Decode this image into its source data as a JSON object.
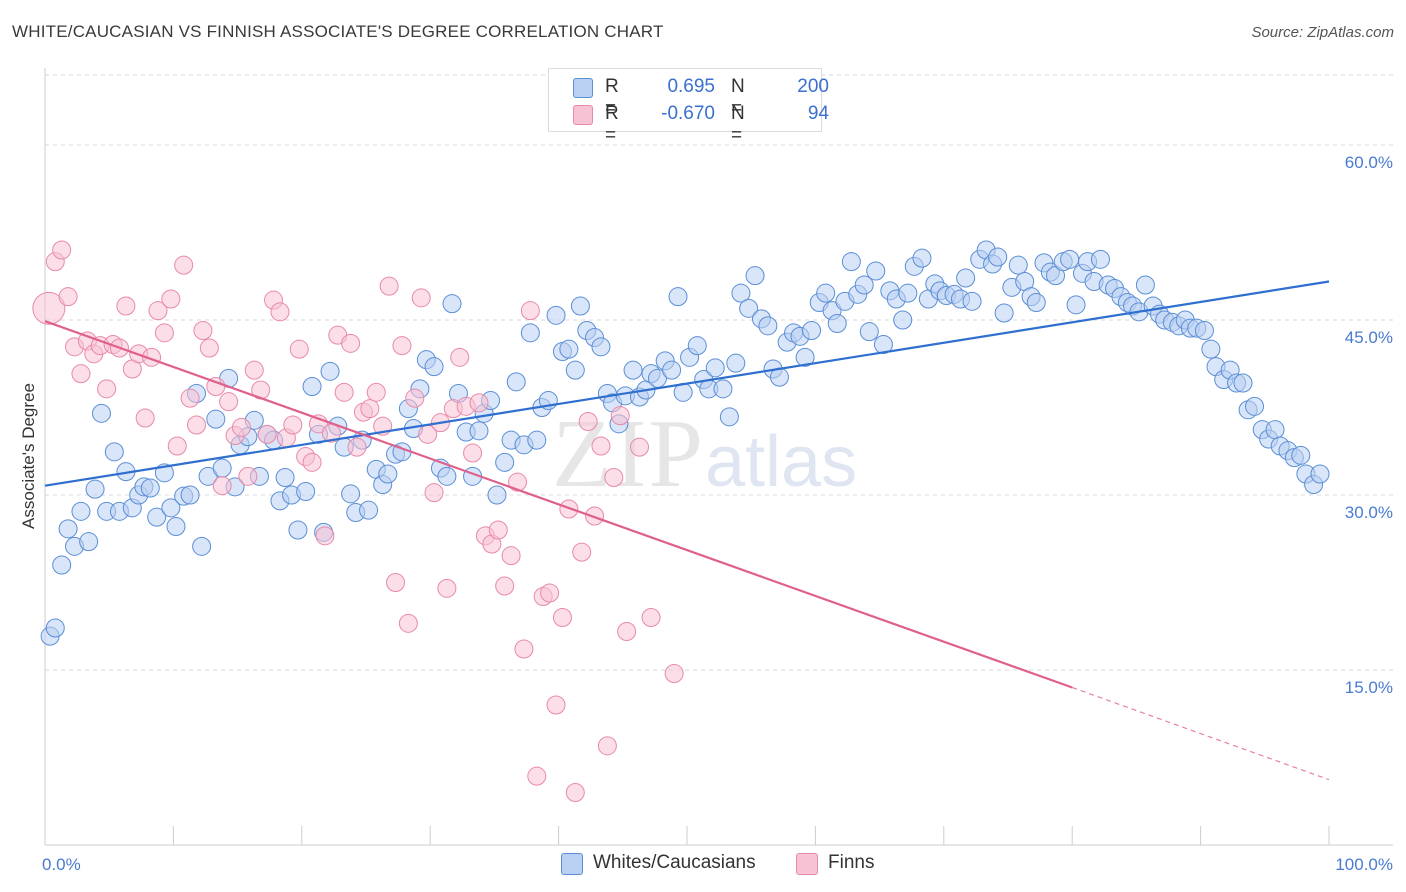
{
  "title": "WHITE/CAUCASIAN VS FINNISH ASSOCIATE'S DEGREE CORRELATION CHART",
  "source": "Source: ZipAtlas.com",
  "watermark": {
    "zip": "ZIP",
    "atlas": "atlas"
  },
  "colors": {
    "blue_fill": "#b9d0f2",
    "blue_stroke": "#5b8fd6",
    "blue_line": "#2e6fd0",
    "pink_fill": "#f7c3d4",
    "pink_stroke": "#e88aa9",
    "pink_line": "#e0608c",
    "grid": "#d9d9d9",
    "axis_text": "#4a7bd0"
  },
  "legend_top": [
    {
      "series": "Whites/Caucasians",
      "r_label": "R =",
      "r_value": "0.695",
      "n_label": "N =",
      "n_value": "200"
    },
    {
      "series": "Finns",
      "r_label": "R =",
      "r_value": "-0.670",
      "n_label": "N =",
      "n_value": "94"
    }
  ],
  "legend_bottom": [
    {
      "label": "Whites/Caucasians"
    },
    {
      "label": "Finns"
    }
  ],
  "chart_data": {
    "type": "scatter",
    "ylabel": "Associate's Degree",
    "xlabel": "",
    "xlim": [
      0,
      100
    ],
    "ylim": [
      0,
      66
    ],
    "x_tick_labels": {
      "left": "0.0%",
      "right": "100.0%"
    },
    "y_ticks": [
      {
        "value": 60,
        "label": "60.0%"
      },
      {
        "value": 45,
        "label": "45.0%"
      },
      {
        "value": 30,
        "label": "30.0%"
      },
      {
        "value": 15,
        "label": "15.0%"
      }
    ],
    "grid": "horizontal dashed",
    "legend": "top-center",
    "series": [
      {
        "name": "Whites/Caucasians",
        "trend": {
          "x0": 0,
          "y0": 30.8,
          "x1": 100,
          "y1": 48.3
        },
        "points": [
          [
            0.4,
            17.9
          ],
          [
            0.8,
            18.6
          ],
          [
            1.3,
            24.0
          ],
          [
            1.8,
            27.1
          ],
          [
            2.3,
            25.6
          ],
          [
            2.8,
            28.6
          ],
          [
            3.4,
            26.0
          ],
          [
            3.9,
            30.5
          ],
          [
            4.4,
            37.0
          ],
          [
            4.8,
            28.6
          ],
          [
            5.4,
            33.7
          ],
          [
            5.8,
            28.6
          ],
          [
            6.3,
            32.0
          ],
          [
            6.8,
            28.9
          ],
          [
            7.3,
            30.0
          ],
          [
            7.7,
            30.7
          ],
          [
            8.2,
            30.6
          ],
          [
            8.7,
            28.1
          ],
          [
            9.3,
            31.9
          ],
          [
            9.8,
            28.9
          ],
          [
            10.2,
            27.3
          ],
          [
            10.8,
            29.9
          ],
          [
            11.3,
            30.0
          ],
          [
            11.8,
            38.7
          ],
          [
            12.2,
            25.6
          ],
          [
            12.7,
            31.6
          ],
          [
            13.3,
            36.5
          ],
          [
            13.8,
            32.3
          ],
          [
            14.3,
            40.0
          ],
          [
            14.8,
            30.7
          ],
          [
            15.2,
            34.3
          ],
          [
            15.8,
            35.0
          ],
          [
            16.3,
            36.4
          ],
          [
            16.7,
            31.6
          ],
          [
            17.3,
            35.2
          ],
          [
            17.8,
            34.7
          ],
          [
            18.3,
            29.5
          ],
          [
            18.7,
            31.5
          ],
          [
            19.2,
            30.0
          ],
          [
            19.7,
            27.0
          ],
          [
            20.3,
            30.3
          ],
          [
            20.8,
            39.3
          ],
          [
            21.3,
            35.2
          ],
          [
            21.7,
            26.8
          ],
          [
            22.2,
            40.6
          ],
          [
            22.8,
            35.9
          ],
          [
            23.3,
            34.1
          ],
          [
            23.8,
            30.1
          ],
          [
            24.2,
            28.5
          ],
          [
            24.7,
            34.7
          ],
          [
            25.2,
            28.7
          ],
          [
            25.8,
            32.2
          ],
          [
            26.3,
            30.9
          ],
          [
            26.7,
            31.8
          ],
          [
            27.3,
            33.5
          ],
          [
            27.8,
            33.7
          ],
          [
            28.3,
            37.4
          ],
          [
            28.7,
            35.7
          ],
          [
            29.2,
            39.1
          ],
          [
            29.7,
            41.6
          ],
          [
            30.3,
            41.0
          ],
          [
            30.8,
            32.3
          ],
          [
            31.3,
            31.6
          ],
          [
            31.7,
            46.4
          ],
          [
            32.2,
            38.7
          ],
          [
            32.8,
            35.4
          ],
          [
            33.3,
            31.6
          ],
          [
            33.8,
            35.5
          ],
          [
            34.2,
            37.0
          ],
          [
            34.7,
            38.1
          ],
          [
            35.2,
            30.0
          ],
          [
            35.8,
            32.8
          ],
          [
            36.3,
            34.7
          ],
          [
            36.7,
            39.7
          ],
          [
            37.3,
            34.3
          ],
          [
            37.8,
            43.9
          ],
          [
            38.3,
            34.7
          ],
          [
            38.7,
            37.5
          ],
          [
            39.2,
            38.1
          ],
          [
            39.8,
            45.4
          ],
          [
            40.3,
            42.3
          ],
          [
            40.8,
            42.5
          ],
          [
            41.3,
            40.7
          ],
          [
            41.7,
            46.2
          ],
          [
            42.2,
            44.1
          ],
          [
            42.8,
            43.5
          ],
          [
            43.3,
            42.7
          ],
          [
            43.8,
            38.7
          ],
          [
            44.2,
            37.9
          ],
          [
            44.7,
            36.1
          ],
          [
            45.2,
            38.5
          ],
          [
            45.8,
            40.7
          ],
          [
            46.3,
            38.4
          ],
          [
            46.8,
            39.0
          ],
          [
            47.2,
            40.4
          ],
          [
            47.7,
            40.0
          ],
          [
            48.3,
            41.5
          ],
          [
            48.8,
            40.7
          ],
          [
            49.3,
            47.0
          ],
          [
            49.7,
            38.8
          ],
          [
            50.2,
            41.8
          ],
          [
            50.8,
            42.8
          ],
          [
            51.3,
            39.9
          ],
          [
            51.7,
            39.1
          ],
          [
            52.2,
            40.9
          ],
          [
            52.8,
            39.1
          ],
          [
            53.3,
            36.7
          ],
          [
            53.8,
            41.3
          ],
          [
            54.2,
            47.3
          ],
          [
            54.8,
            46.0
          ],
          [
            55.3,
            48.8
          ],
          [
            55.8,
            45.1
          ],
          [
            56.3,
            44.5
          ],
          [
            56.7,
            40.8
          ],
          [
            57.2,
            40.1
          ],
          [
            57.8,
            43.1
          ],
          [
            58.3,
            43.9
          ],
          [
            58.8,
            43.6
          ],
          [
            59.2,
            41.8
          ],
          [
            59.7,
            44.1
          ],
          [
            60.3,
            46.5
          ],
          [
            60.8,
            47.3
          ],
          [
            61.3,
            45.8
          ],
          [
            61.7,
            44.7
          ],
          [
            62.3,
            46.6
          ],
          [
            62.8,
            50.0
          ],
          [
            63.3,
            47.2
          ],
          [
            63.8,
            48.0
          ],
          [
            64.2,
            44.0
          ],
          [
            64.7,
            49.2
          ],
          [
            65.3,
            42.9
          ],
          [
            65.8,
            47.5
          ],
          [
            66.3,
            46.8
          ],
          [
            66.8,
            45.0
          ],
          [
            67.2,
            47.3
          ],
          [
            67.7,
            49.6
          ],
          [
            68.3,
            50.3
          ],
          [
            68.8,
            46.8
          ],
          [
            69.3,
            48.1
          ],
          [
            69.7,
            47.5
          ],
          [
            70.2,
            47.1
          ],
          [
            70.8,
            47.2
          ],
          [
            71.3,
            46.8
          ],
          [
            71.7,
            48.6
          ],
          [
            72.2,
            46.6
          ],
          [
            72.8,
            50.2
          ],
          [
            73.3,
            51.0
          ],
          [
            73.8,
            49.8
          ],
          [
            74.2,
            50.4
          ],
          [
            74.7,
            45.6
          ],
          [
            75.3,
            47.8
          ],
          [
            75.8,
            49.7
          ],
          [
            76.3,
            48.3
          ],
          [
            76.8,
            47.0
          ],
          [
            77.2,
            46.5
          ],
          [
            77.8,
            49.9
          ],
          [
            78.3,
            49.1
          ],
          [
            78.7,
            48.8
          ],
          [
            79.3,
            50.0
          ],
          [
            79.8,
            50.2
          ],
          [
            80.3,
            46.3
          ],
          [
            80.8,
            49.0
          ],
          [
            81.2,
            50.0
          ],
          [
            81.7,
            48.3
          ],
          [
            82.2,
            50.2
          ],
          [
            82.8,
            48.0
          ],
          [
            83.3,
            47.7
          ],
          [
            83.8,
            47.0
          ],
          [
            84.3,
            46.5
          ],
          [
            84.7,
            46.2
          ],
          [
            85.2,
            45.7
          ],
          [
            85.7,
            48.0
          ],
          [
            86.3,
            46.2
          ],
          [
            86.8,
            45.5
          ],
          [
            87.2,
            45.0
          ],
          [
            87.8,
            44.8
          ],
          [
            88.3,
            44.5
          ],
          [
            88.8,
            45.0
          ],
          [
            89.2,
            44.3
          ],
          [
            89.7,
            44.3
          ],
          [
            90.3,
            44.1
          ],
          [
            90.8,
            42.5
          ],
          [
            91.2,
            41.0
          ],
          [
            91.8,
            39.9
          ],
          [
            92.3,
            40.7
          ],
          [
            92.8,
            39.6
          ],
          [
            93.3,
            39.6
          ],
          [
            93.7,
            37.3
          ],
          [
            94.2,
            37.6
          ],
          [
            94.8,
            35.6
          ],
          [
            95.3,
            34.8
          ],
          [
            95.8,
            35.6
          ],
          [
            96.2,
            34.2
          ],
          [
            96.8,
            33.8
          ],
          [
            97.3,
            33.2
          ],
          [
            97.8,
            33.4
          ],
          [
            98.2,
            31.8
          ],
          [
            98.8,
            30.9
          ],
          [
            99.3,
            31.8
          ]
        ]
      },
      {
        "name": "Finns",
        "trend": {
          "x0": 0,
          "y0": 44.9,
          "x1": 80,
          "y1": 13.5,
          "dash_x1": 100,
          "dash_y1": 5.6
        },
        "points": [
          [
            0.3,
            46.0
          ],
          [
            0.8,
            50.0
          ],
          [
            1.3,
            51.0
          ],
          [
            1.8,
            47.0
          ],
          [
            2.3,
            42.7
          ],
          [
            2.8,
            40.4
          ],
          [
            3.3,
            43.2
          ],
          [
            3.8,
            42.1
          ],
          [
            4.3,
            42.8
          ],
          [
            4.8,
            39.1
          ],
          [
            5.3,
            42.9
          ],
          [
            5.8,
            42.6
          ],
          [
            6.3,
            46.2
          ],
          [
            6.8,
            40.8
          ],
          [
            7.3,
            42.1
          ],
          [
            7.8,
            36.6
          ],
          [
            8.3,
            41.8
          ],
          [
            8.8,
            45.8
          ],
          [
            9.3,
            43.9
          ],
          [
            9.8,
            46.8
          ],
          [
            10.3,
            34.2
          ],
          [
            10.8,
            49.7
          ],
          [
            11.3,
            38.3
          ],
          [
            11.8,
            36.0
          ],
          [
            12.3,
            44.1
          ],
          [
            12.8,
            42.6
          ],
          [
            13.3,
            39.3
          ],
          [
            13.8,
            30.8
          ],
          [
            14.3,
            38.0
          ],
          [
            14.8,
            35.1
          ],
          [
            15.3,
            35.8
          ],
          [
            15.8,
            31.6
          ],
          [
            16.3,
            40.7
          ],
          [
            16.8,
            39.0
          ],
          [
            17.3,
            35.2
          ],
          [
            17.8,
            46.7
          ],
          [
            18.3,
            45.7
          ],
          [
            18.8,
            34.9
          ],
          [
            19.3,
            36.0
          ],
          [
            19.8,
            42.5
          ],
          [
            20.3,
            33.3
          ],
          [
            20.8,
            32.8
          ],
          [
            21.3,
            36.1
          ],
          [
            21.8,
            26.5
          ],
          [
            22.3,
            35.3
          ],
          [
            22.8,
            43.7
          ],
          [
            23.3,
            38.8
          ],
          [
            23.8,
            43.0
          ],
          [
            24.3,
            34.1
          ],
          [
            24.8,
            37.1
          ],
          [
            25.3,
            37.4
          ],
          [
            25.8,
            38.8
          ],
          [
            26.3,
            35.9
          ],
          [
            26.8,
            47.9
          ],
          [
            27.3,
            22.5
          ],
          [
            27.8,
            42.8
          ],
          [
            28.3,
            19.0
          ],
          [
            28.8,
            38.3
          ],
          [
            29.3,
            46.9
          ],
          [
            29.8,
            35.2
          ],
          [
            30.3,
            30.2
          ],
          [
            30.8,
            36.2
          ],
          [
            31.3,
            22.0
          ],
          [
            31.8,
            37.4
          ],
          [
            32.3,
            41.8
          ],
          [
            32.8,
            37.6
          ],
          [
            33.3,
            33.6
          ],
          [
            33.8,
            37.9
          ],
          [
            34.3,
            26.5
          ],
          [
            34.8,
            25.8
          ],
          [
            35.3,
            27.0
          ],
          [
            35.8,
            22.2
          ],
          [
            36.3,
            24.8
          ],
          [
            36.8,
            31.1
          ],
          [
            37.3,
            16.8
          ],
          [
            37.8,
            45.8
          ],
          [
            38.3,
            5.9
          ],
          [
            38.8,
            21.3
          ],
          [
            39.3,
            21.6
          ],
          [
            39.8,
            12.0
          ],
          [
            40.3,
            19.5
          ],
          [
            40.8,
            28.8
          ],
          [
            41.3,
            4.5
          ],
          [
            41.8,
            25.1
          ],
          [
            42.3,
            36.3
          ],
          [
            42.8,
            28.2
          ],
          [
            43.3,
            34.2
          ],
          [
            43.8,
            8.5
          ],
          [
            44.3,
            31.5
          ],
          [
            44.8,
            36.8
          ],
          [
            45.3,
            18.3
          ],
          [
            46.3,
            34.1
          ],
          [
            47.2,
            19.5
          ],
          [
            49.0,
            14.7
          ]
        ]
      }
    ]
  }
}
